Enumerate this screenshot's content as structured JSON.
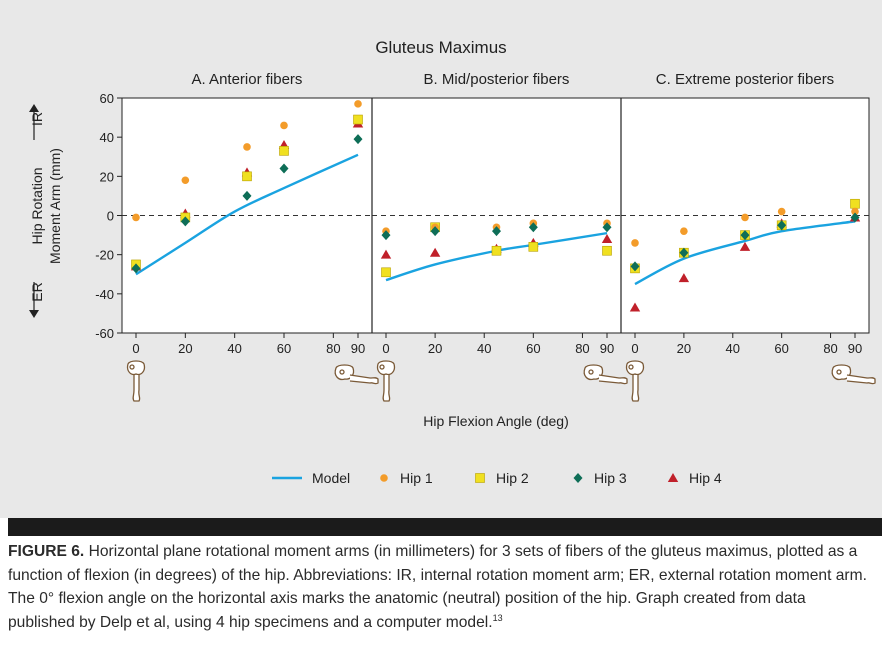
{
  "caption": {
    "label": "FIGURE 6.",
    "text": " Horizontal plane rotational moment arms (in millimeters) for 3 sets of fibers of the gluteus maximus, plotted as a function of flexion (in degrees) of the hip. Abbreviations: IR, internal rotation moment arm; ER, external rotation moment arm. The 0° flexion angle on the horizontal axis marks the anatomic (neutral) position of the hip. Graph created from data published by Delp et al, using 4 hip specimens and a computer model.",
    "ref": "13"
  },
  "chart_data": {
    "type": "scatter",
    "title": "Gluteus Maximus",
    "xlabel": "Hip Flexion Angle (deg)",
    "ylabel_lines": [
      "Hip Rotation",
      "Moment Arm (mm)"
    ],
    "ir_label": "IR",
    "er_label": "ER",
    "ylim": [
      -60,
      60
    ],
    "xlim": [
      -5,
      95
    ],
    "yticks": [
      -60,
      -40,
      -20,
      0,
      20,
      40,
      60
    ],
    "xticks": [
      0,
      20,
      40,
      60,
      80,
      90
    ],
    "reference_line": 0,
    "grid": false,
    "legend_position": "bottom",
    "legend": [
      {
        "name": "Model",
        "marker": "line",
        "color": "#1aa3e0"
      },
      {
        "name": "Hip 1",
        "marker": "circle",
        "color": "#f39c2a"
      },
      {
        "name": "Hip 2",
        "marker": "square",
        "color": "#f0e020"
      },
      {
        "name": "Hip 3",
        "marker": "diamond",
        "color": "#0e6e57"
      },
      {
        "name": "Hip 4",
        "marker": "triangle",
        "color": "#c0202a"
      }
    ],
    "panels": [
      {
        "title": "A. Anterior fibers",
        "model": [
          [
            0,
            -30
          ],
          [
            20,
            -14
          ],
          [
            40,
            2
          ],
          [
            60,
            14
          ],
          [
            90,
            31
          ]
        ],
        "hip1": [
          [
            0,
            -1
          ],
          [
            20,
            18
          ],
          [
            45,
            35
          ],
          [
            60,
            46
          ],
          [
            90,
            57
          ]
        ],
        "hip2": [
          [
            0,
            -25
          ],
          [
            20,
            -1
          ],
          [
            45,
            20
          ],
          [
            60,
            33
          ],
          [
            90,
            49
          ]
        ],
        "hip3": [
          [
            0,
            -27
          ],
          [
            20,
            -3
          ],
          [
            45,
            10
          ],
          [
            60,
            24
          ],
          [
            90,
            39
          ]
        ],
        "hip4": [
          [
            0,
            -26
          ],
          [
            20,
            1
          ],
          [
            45,
            22
          ],
          [
            60,
            36
          ],
          [
            90,
            47
          ]
        ]
      },
      {
        "title": "B. Mid/posterior fibers",
        "model": [
          [
            0,
            -33
          ],
          [
            20,
            -25
          ],
          [
            45,
            -18
          ],
          [
            60,
            -15
          ],
          [
            90,
            -9
          ]
        ],
        "hip1": [
          [
            0,
            -8
          ],
          [
            20,
            -6
          ],
          [
            45,
            -6
          ],
          [
            60,
            -4
          ],
          [
            90,
            -4
          ]
        ],
        "hip2": [
          [
            0,
            -29
          ],
          [
            20,
            -6
          ],
          [
            45,
            -18
          ],
          [
            60,
            -16
          ],
          [
            90,
            -18
          ]
        ],
        "hip3": [
          [
            0,
            -10
          ],
          [
            20,
            -8
          ],
          [
            45,
            -8
          ],
          [
            60,
            -6
          ],
          [
            90,
            -6
          ]
        ],
        "hip4": [
          [
            0,
            -20
          ],
          [
            20,
            -19
          ],
          [
            45,
            -17
          ],
          [
            60,
            -14
          ],
          [
            90,
            -12
          ]
        ]
      },
      {
        "title": "C. Extreme posterior fibers",
        "model": [
          [
            0,
            -35
          ],
          [
            20,
            -22
          ],
          [
            45,
            -13
          ],
          [
            60,
            -8
          ],
          [
            90,
            -3
          ]
        ],
        "hip1": [
          [
            0,
            -14
          ],
          [
            20,
            -8
          ],
          [
            45,
            -1
          ],
          [
            60,
            2
          ],
          [
            90,
            2
          ]
        ],
        "hip2": [
          [
            0,
            -27
          ],
          [
            20,
            -19
          ],
          [
            45,
            -10
          ],
          [
            60,
            -5
          ],
          [
            90,
            6
          ]
        ],
        "hip3": [
          [
            0,
            -26
          ],
          [
            20,
            -19
          ],
          [
            45,
            -10
          ],
          [
            60,
            -5
          ],
          [
            90,
            -1
          ]
        ],
        "hip4": [
          [
            0,
            -47
          ],
          [
            20,
            -32
          ],
          [
            45,
            -16
          ],
          [
            60,
            -4
          ],
          [
            90,
            -1
          ]
        ]
      }
    ]
  }
}
